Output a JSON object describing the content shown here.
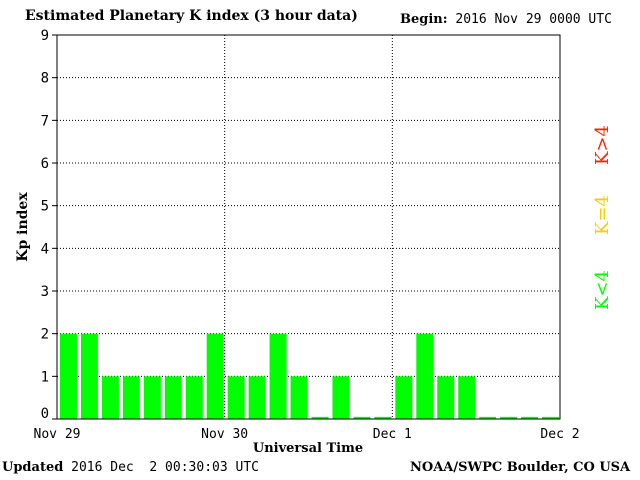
{
  "header": {
    "title": "Estimated Planetary K index (3 hour data)",
    "begin_label": "Begin:",
    "begin_value": "2016 Nov 29 0000 UTC"
  },
  "footer": {
    "updated_label": "Updated",
    "updated_value": "2016 Dec  2 00:30:03 UTC",
    "credit": "NOAA/SWPC Boulder, CO USA"
  },
  "chart_data": {
    "type": "bar",
    "title": "Estimated Planetary K index (3 hour data)",
    "xlabel": "Universal Time",
    "ylabel": "Kp index",
    "ylim": [
      0,
      9
    ],
    "yticks": [
      0,
      1,
      2,
      3,
      4,
      5,
      6,
      7,
      8,
      9
    ],
    "grid": true,
    "bar_color": "#00ff00",
    "day_labels": [
      "Nov 29",
      "Nov 30",
      "Dec 1",
      "Dec 2"
    ],
    "values": [
      2,
      2,
      1,
      1,
      1,
      1,
      1,
      2,
      1,
      1,
      2,
      1,
      0.05,
      1,
      0.05,
      0.05,
      1,
      2,
      1,
      1,
      0.05,
      0.05,
      0.05,
      0.05
    ],
    "legend": [
      {
        "label": "K<4",
        "color": "#00ff00"
      },
      {
        "label": "K=4",
        "color": "#ffcc00"
      },
      {
        "label": "K>4",
        "color": "#ff2200"
      }
    ]
  }
}
